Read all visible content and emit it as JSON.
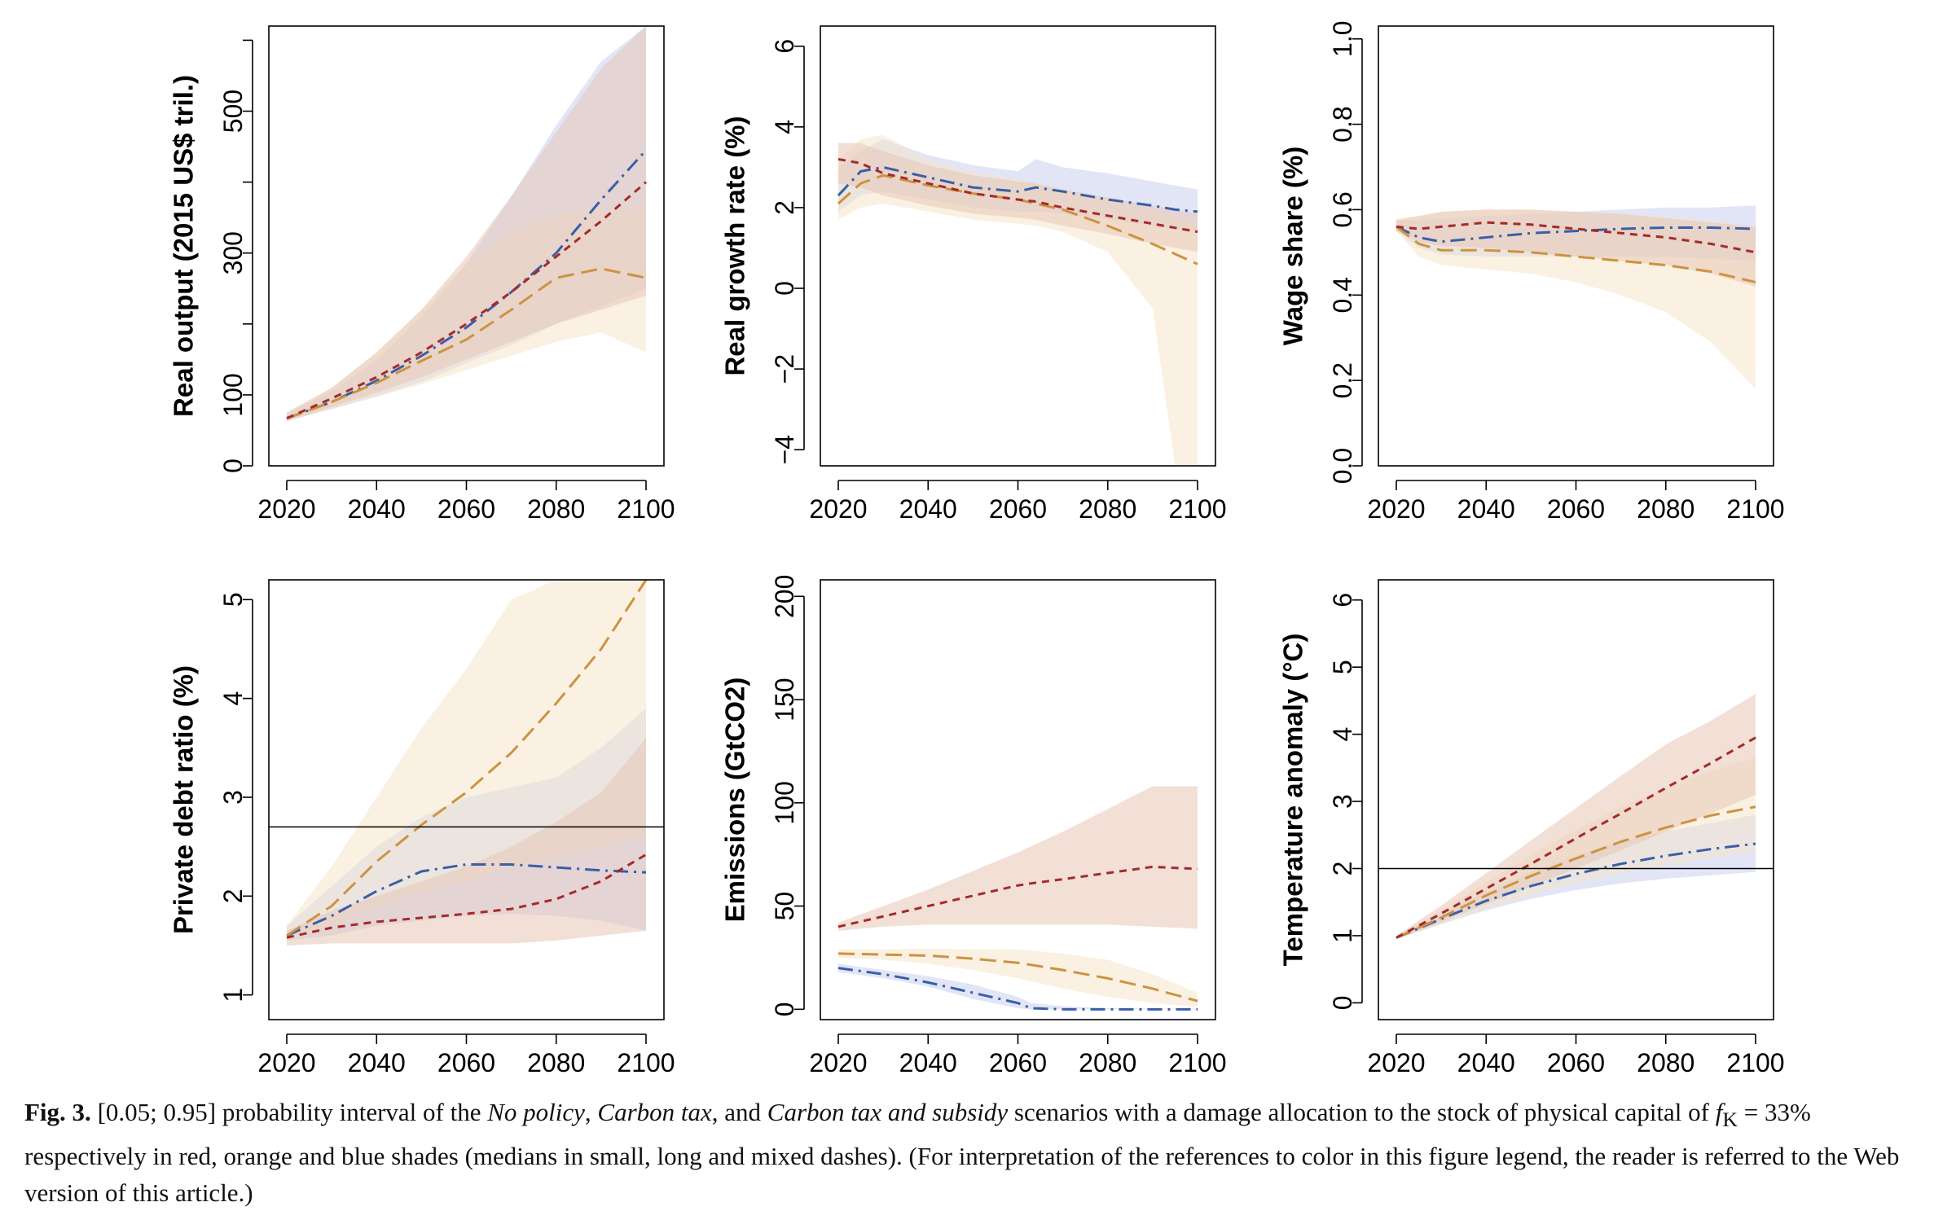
{
  "colors": {
    "no_policy_line": "#a52a2a",
    "no_policy_band": "#e8c6b6",
    "carbon_tax_line": "#cc9340",
    "carbon_tax_band": "#f6e6cc",
    "subsidy_line": "#3a5ea8",
    "subsidy_band": "#c8d0ee"
  },
  "chart_data": [
    {
      "type": "area",
      "ylabel": "Real output (2015 US$ tril.)",
      "xlim": [
        2020,
        2100
      ],
      "ylim": [
        0,
        620
      ],
      "xticks": [
        2020,
        2040,
        2060,
        2080,
        2100
      ],
      "yticks": [
        0,
        100,
        300,
        500
      ],
      "minor_yticks": [
        200,
        400,
        600
      ],
      "x": [
        2020,
        2030,
        2040,
        2050,
        2060,
        2070,
        2080,
        2090,
        2100
      ],
      "series": [
        {
          "key": "subsidy",
          "style": "dashdot",
          "median": [
            67,
            90,
            120,
            155,
            195,
            245,
            300,
            375,
            445
          ],
          "lower": [
            63,
            80,
            98,
            118,
            145,
            170,
            200,
            225,
            250
          ],
          "upper": [
            73,
            105,
            150,
            210,
            285,
            380,
            480,
            570,
            620
          ]
        },
        {
          "key": "carbon_tax",
          "style": "longdash",
          "median": [
            67,
            90,
            117,
            148,
            178,
            220,
            265,
            278,
            265
          ],
          "lower": [
            63,
            80,
            97,
            115,
            135,
            155,
            175,
            188,
            160
          ],
          "upper": [
            75,
            110,
            160,
            220,
            285,
            330,
            355,
            360,
            360
          ]
        },
        {
          "key": "no_policy",
          "style": "shortdash",
          "median": [
            67,
            95,
            125,
            160,
            200,
            245,
            295,
            345,
            400
          ],
          "lower": [
            63,
            83,
            103,
            125,
            150,
            175,
            200,
            220,
            240
          ],
          "upper": [
            75,
            110,
            160,
            220,
            295,
            380,
            470,
            560,
            620
          ]
        }
      ],
      "hlines": []
    },
    {
      "type": "area",
      "ylabel": "Real growth rate (%)",
      "xlim": [
        2020,
        2100
      ],
      "ylim": [
        -4.4,
        6.5
      ],
      "xticks": [
        2020,
        2040,
        2060,
        2080,
        2100
      ],
      "yticks": [
        -4,
        -2,
        0,
        2,
        4,
        6
      ],
      "minor_yticks": [],
      "x": [
        2020,
        2025,
        2030,
        2040,
        2050,
        2060,
        2064,
        2070,
        2080,
        2090,
        2095,
        2100
      ],
      "series": [
        {
          "key": "subsidy",
          "style": "dashdot",
          "median": [
            2.3,
            2.9,
            3.0,
            2.75,
            2.5,
            2.4,
            2.5,
            2.4,
            2.2,
            2.05,
            1.95,
            1.9
          ],
          "lower": [
            1.9,
            2.3,
            2.4,
            2.2,
            2.0,
            1.9,
            1.9,
            1.85,
            1.7,
            1.55,
            1.45,
            1.4
          ],
          "upper": [
            3.0,
            3.4,
            3.7,
            3.3,
            3.05,
            2.9,
            3.2,
            3.0,
            2.85,
            2.65,
            2.55,
            2.45
          ]
        },
        {
          "key": "carbon_tax",
          "style": "longdash",
          "median": [
            2.1,
            2.6,
            2.8,
            2.55,
            2.35,
            2.2,
            2.1,
            1.95,
            1.55,
            1.1,
            0.85,
            0.6
          ],
          "lower": [
            1.7,
            2.0,
            2.1,
            1.9,
            1.7,
            1.6,
            1.55,
            1.4,
            0.9,
            -0.5,
            -4.4,
            -4.4
          ],
          "upper": [
            3.2,
            3.7,
            3.8,
            3.2,
            2.9,
            2.7,
            2.6,
            2.45,
            2.2,
            1.9,
            1.75,
            1.6
          ]
        },
        {
          "key": "no_policy",
          "style": "shortdash",
          "median": [
            3.2,
            3.1,
            2.85,
            2.6,
            2.35,
            2.2,
            2.15,
            2.0,
            1.8,
            1.6,
            1.5,
            1.4
          ],
          "lower": [
            2.6,
            2.5,
            2.3,
            2.05,
            1.85,
            1.75,
            1.7,
            1.55,
            1.35,
            1.1,
            1.0,
            0.9
          ],
          "upper": [
            3.6,
            3.6,
            3.4,
            3.05,
            2.8,
            2.65,
            2.6,
            2.45,
            2.25,
            2.05,
            1.95,
            1.85
          ]
        }
      ],
      "hlines": []
    },
    {
      "type": "area",
      "ylabel": "Wage share (%)",
      "xlim": [
        2020,
        2100
      ],
      "ylim": [
        0,
        1.03
      ],
      "xticks": [
        2020,
        2040,
        2060,
        2080,
        2100
      ],
      "yticks": [
        0.0,
        0.2,
        0.4,
        0.6,
        0.8,
        1.0
      ],
      "tick_labels": [
        "0.0",
        "0.2",
        "0.4",
        "0.6",
        "0.8",
        "1.0"
      ],
      "minor_yticks": [],
      "x": [
        2020,
        2025,
        2030,
        2040,
        2050,
        2060,
        2070,
        2080,
        2090,
        2100
      ],
      "series": [
        {
          "key": "subsidy",
          "style": "dashdot",
          "median": [
            0.56,
            0.535,
            0.525,
            0.535,
            0.545,
            0.55,
            0.555,
            0.558,
            0.558,
            0.555
          ],
          "lower": [
            0.55,
            0.51,
            0.495,
            0.49,
            0.49,
            0.49,
            0.49,
            0.49,
            0.485,
            0.48
          ],
          "upper": [
            0.575,
            0.575,
            0.58,
            0.585,
            0.59,
            0.595,
            0.6,
            0.605,
            0.605,
            0.61
          ]
        },
        {
          "key": "carbon_tax",
          "style": "longdash",
          "median": [
            0.56,
            0.52,
            0.505,
            0.505,
            0.5,
            0.49,
            0.48,
            0.47,
            0.455,
            0.43
          ],
          "lower": [
            0.55,
            0.49,
            0.47,
            0.46,
            0.45,
            0.43,
            0.4,
            0.36,
            0.29,
            0.18
          ],
          "upper": [
            0.58,
            0.585,
            0.595,
            0.6,
            0.6,
            0.595,
            0.59,
            0.585,
            0.575,
            0.56
          ]
        },
        {
          "key": "no_policy",
          "style": "shortdash",
          "median": [
            0.56,
            0.555,
            0.56,
            0.57,
            0.565,
            0.555,
            0.545,
            0.535,
            0.52,
            0.5
          ],
          "lower": [
            0.55,
            0.525,
            0.515,
            0.51,
            0.5,
            0.49,
            0.48,
            0.47,
            0.45,
            0.42
          ],
          "upper": [
            0.575,
            0.585,
            0.595,
            0.6,
            0.6,
            0.595,
            0.59,
            0.58,
            0.57,
            0.56
          ]
        }
      ],
      "hlines": []
    },
    {
      "type": "area",
      "ylabel": "Private debt ratio (%)",
      "xlim": [
        2020,
        2100
      ],
      "ylim": [
        0.75,
        5.2
      ],
      "xticks": [
        2020,
        2040,
        2060,
        2080,
        2100
      ],
      "yticks": [
        1,
        2,
        3,
        4,
        5
      ],
      "minor_yticks": [],
      "x": [
        2020,
        2030,
        2040,
        2050,
        2060,
        2070,
        2080,
        2090,
        2100
      ],
      "series": [
        {
          "key": "subsidy",
          "style": "dashdot",
          "median": [
            1.6,
            1.8,
            2.05,
            2.25,
            2.32,
            2.32,
            2.29,
            2.26,
            2.24
          ],
          "lower": [
            1.55,
            1.6,
            1.7,
            1.75,
            1.8,
            1.82,
            1.8,
            1.75,
            1.65
          ],
          "upper": [
            1.7,
            2.1,
            2.5,
            2.8,
            3.0,
            3.1,
            3.2,
            3.5,
            3.9
          ]
        },
        {
          "key": "carbon_tax",
          "style": "longdash",
          "median": [
            1.6,
            1.9,
            2.35,
            2.72,
            3.05,
            3.45,
            3.95,
            4.5,
            5.2
          ],
          "lower": [
            1.55,
            1.7,
            1.9,
            2.05,
            2.15,
            2.3,
            2.4,
            2.5,
            2.6
          ],
          "upper": [
            1.7,
            2.3,
            3.0,
            3.7,
            4.3,
            5.0,
            5.2,
            5.2,
            5.2
          ]
        },
        {
          "key": "no_policy",
          "style": "shortdash",
          "median": [
            1.58,
            1.68,
            1.74,
            1.78,
            1.82,
            1.87,
            1.97,
            2.15,
            2.42
          ],
          "lower": [
            1.5,
            1.52,
            1.52,
            1.52,
            1.52,
            1.52,
            1.55,
            1.6,
            1.65
          ],
          "upper": [
            1.65,
            1.85,
            2.0,
            2.15,
            2.3,
            2.5,
            2.75,
            3.05,
            3.6
          ]
        }
      ],
      "hlines": [
        2.7
      ]
    },
    {
      "type": "area",
      "ylabel": "Emissions (GtCO2)",
      "xlim": [
        2020,
        2100
      ],
      "ylim": [
        -5,
        208
      ],
      "xticks": [
        2020,
        2040,
        2060,
        2080,
        2100
      ],
      "yticks": [
        0,
        50,
        100,
        150,
        200
      ],
      "minor_yticks": [],
      "x": [
        2020,
        2030,
        2040,
        2050,
        2060,
        2063,
        2070,
        2080,
        2090,
        2100
      ],
      "series": [
        {
          "key": "subsidy",
          "style": "dashdot",
          "median": [
            20,
            17,
            13,
            8,
            3,
            0.5,
            0,
            0,
            0,
            0
          ],
          "lower": [
            18,
            15,
            11,
            5,
            0.5,
            0,
            0,
            0,
            0,
            0
          ],
          "upper": [
            22,
            19,
            16,
            12,
            6,
            3,
            1.5,
            0.5,
            0.3,
            0.3
          ]
        },
        {
          "key": "carbon_tax",
          "style": "longdash",
          "median": [
            27,
            26.5,
            26,
            24.5,
            22.5,
            21.5,
            19,
            15,
            10,
            4
          ],
          "lower": [
            25,
            24,
            22,
            19,
            15,
            13.5,
            10,
            6,
            3,
            1
          ],
          "upper": [
            29,
            29,
            29.5,
            29,
            29,
            28.5,
            27,
            24,
            17,
            8
          ]
        },
        {
          "key": "no_policy",
          "style": "shortdash",
          "median": [
            40,
            45,
            50,
            55,
            60,
            61,
            63,
            66,
            69,
            68
          ],
          "lower": [
            38,
            40,
            41,
            41,
            41,
            41,
            41,
            41,
            40,
            39
          ],
          "upper": [
            42,
            50,
            58,
            67,
            76,
            79,
            86,
            97,
            108,
            108
          ]
        }
      ],
      "hlines": []
    },
    {
      "type": "area",
      "ylabel": "Temperature anomaly (°C)",
      "xlim": [
        2020,
        2100
      ],
      "ylim": [
        -0.25,
        6.3
      ],
      "xticks": [
        2020,
        2040,
        2060,
        2080,
        2100
      ],
      "yticks": [
        0,
        1,
        2,
        3,
        4,
        5,
        6
      ],
      "minor_yticks": [],
      "x": [
        2020,
        2030,
        2040,
        2050,
        2060,
        2070,
        2080,
        2090,
        2100
      ],
      "series": [
        {
          "key": "subsidy",
          "style": "dashdot",
          "median": [
            0.97,
            1.25,
            1.52,
            1.74,
            1.92,
            2.07,
            2.19,
            2.29,
            2.37
          ],
          "lower": [
            0.95,
            1.17,
            1.38,
            1.55,
            1.68,
            1.78,
            1.85,
            1.9,
            1.95
          ],
          "upper": [
            1.0,
            1.33,
            1.65,
            1.95,
            2.2,
            2.4,
            2.55,
            2.68,
            2.8
          ]
        },
        {
          "key": "carbon_tax",
          "style": "longdash",
          "median": [
            0.97,
            1.27,
            1.6,
            1.89,
            2.15,
            2.4,
            2.61,
            2.79,
            2.92
          ],
          "lower": [
            0.95,
            1.17,
            1.4,
            1.6,
            1.78,
            1.93,
            2.05,
            2.15,
            2.25
          ],
          "upper": [
            1.0,
            1.38,
            1.8,
            2.2,
            2.58,
            2.92,
            3.2,
            3.45,
            3.65
          ]
        },
        {
          "key": "no_policy",
          "style": "shortdash",
          "median": [
            0.97,
            1.33,
            1.7,
            2.07,
            2.45,
            2.82,
            3.2,
            3.57,
            3.95
          ],
          "lower": [
            0.95,
            1.2,
            1.47,
            1.73,
            2.0,
            2.27,
            2.55,
            2.82,
            3.1
          ],
          "upper": [
            1.0,
            1.45,
            1.93,
            2.42,
            2.9,
            3.38,
            3.85,
            4.2,
            4.6
          ]
        }
      ],
      "hlines": [
        2
      ]
    }
  ],
  "caption": {
    "label": "Fig. 3.",
    "part1": " [0.05; 0.95] probability interval of the ",
    "scenario1": "No policy",
    "sep1": ", ",
    "scenario2": "Carbon tax",
    "sep2": ", and ",
    "scenario3": "Carbon tax and subsidy",
    "part2": " scenarios with a damage allocation to the stock of physical capital of ",
    "symbol": "f",
    "subscript": "K",
    "part3": " = 33% respectively in red, orange and blue shades (medians in small, long and mixed dashes). (For interpretation of the references to color in this figure legend, the reader is referred to the Web version of this article.)"
  }
}
